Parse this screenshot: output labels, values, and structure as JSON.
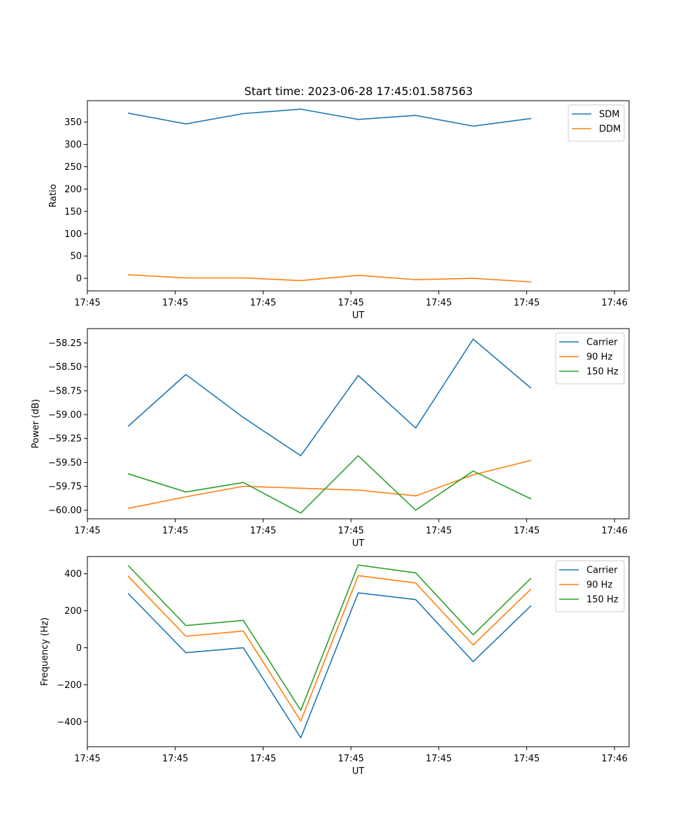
{
  "figure": {
    "title": "Start time: 2023-06-28 17:45:01.587563"
  },
  "colors": {
    "tab_blue": "#1f77b4",
    "tab_orange": "#ff7f0e",
    "tab_green": "#2ca02c"
  },
  "chart_data": [
    {
      "type": "line",
      "title": "Start time: 2023-06-28 17:45:01.587563",
      "xlabel": "UT",
      "ylabel": "Ratio",
      "x_tick_labels": [
        "17:45",
        "17:45",
        "17:45",
        "17:45",
        "17:45",
        "17:45",
        "17:46"
      ],
      "y_ticks": [
        0,
        50,
        100,
        150,
        200,
        250,
        300,
        350
      ],
      "y_tick_labels": [
        "0",
        "50",
        "100",
        "150",
        "200",
        "250",
        "300",
        "350"
      ],
      "ylim": [
        -28,
        398
      ],
      "x_index_range": [
        -0.714,
        8.714
      ],
      "x_tick_positions": [
        -0.714,
        0.815,
        2.344,
        3.873,
        5.402,
        6.931,
        8.46
      ],
      "x": [
        0,
        1,
        2,
        3,
        4,
        5,
        6,
        7
      ],
      "legend_position": "top-right",
      "grid": false,
      "series": [
        {
          "name": "SDM",
          "color": "#1f77b4",
          "values": [
            370,
            346,
            369,
            379,
            356,
            365,
            341,
            358
          ]
        },
        {
          "name": "DDM",
          "color": "#ff7f0e",
          "values": [
            8,
            1,
            1,
            -5,
            7,
            -3,
            0,
            -8
          ]
        }
      ]
    },
    {
      "type": "line",
      "title": "",
      "xlabel": "UT",
      "ylabel": "Power (dB)",
      "x_tick_labels": [
        "17:45",
        "17:45",
        "17:45",
        "17:45",
        "17:45",
        "17:45",
        "17:46"
      ],
      "y_ticks": [
        -60.0,
        -59.75,
        -59.5,
        -59.25,
        -59.0,
        -58.75,
        -58.5,
        -58.25
      ],
      "y_tick_labels": [
        "−60.00",
        "−59.75",
        "−59.50",
        "−59.25",
        "−59.00",
        "−58.75",
        "−58.50",
        "−58.25"
      ],
      "ylim": [
        -60.09,
        -58.1
      ],
      "x_index_range": [
        -0.714,
        8.714
      ],
      "x_tick_positions": [
        -0.714,
        0.815,
        2.344,
        3.873,
        5.402,
        6.931,
        8.46
      ],
      "x": [
        0,
        1,
        2,
        3,
        4,
        5,
        6,
        7
      ],
      "legend_position": "top-right",
      "grid": false,
      "series": [
        {
          "name": "Carrier",
          "color": "#1f77b4",
          "values": [
            -59.12,
            -58.58,
            -59.03,
            -59.43,
            -58.59,
            -59.14,
            -58.21,
            -58.72
          ]
        },
        {
          "name": "90 Hz",
          "color": "#ff7f0e",
          "values": [
            -59.98,
            -59.86,
            -59.75,
            -59.77,
            -59.79,
            -59.85,
            -59.63,
            -59.48
          ]
        },
        {
          "name": "150 Hz",
          "color": "#2ca02c",
          "values": [
            -59.62,
            -59.81,
            -59.71,
            -60.03,
            -59.43,
            -60.0,
            -59.59,
            -59.88
          ]
        }
      ]
    },
    {
      "type": "line",
      "title": "",
      "xlabel": "UT",
      "ylabel": "Frequency (Hz)",
      "x_tick_labels": [
        "17:45",
        "17:45",
        "17:45",
        "17:45",
        "17:45",
        "17:45",
        "17:46"
      ],
      "y_ticks": [
        -400,
        -200,
        0,
        200,
        400
      ],
      "y_tick_labels": [
        "−400",
        "−200",
        "0",
        "200",
        "400"
      ],
      "ylim": [
        -535,
        493
      ],
      "x_index_range": [
        -0.714,
        8.714
      ],
      "x_tick_positions": [
        -0.714,
        0.815,
        2.344,
        3.873,
        5.402,
        6.931,
        8.46
      ],
      "x": [
        0,
        1,
        2,
        3,
        4,
        5,
        6,
        7
      ],
      "legend_position": "top-right",
      "grid": false,
      "series": [
        {
          "name": "Carrier",
          "color": "#1f77b4",
          "values": [
            292,
            -27,
            0,
            -487,
            297,
            260,
            -75,
            225
          ]
        },
        {
          "name": "90 Hz",
          "color": "#ff7f0e",
          "values": [
            385,
            62,
            90,
            -396,
            390,
            350,
            15,
            315
          ]
        },
        {
          "name": "150 Hz",
          "color": "#2ca02c",
          "values": [
            443,
            120,
            148,
            -338,
            447,
            405,
            70,
            374
          ]
        }
      ]
    }
  ]
}
